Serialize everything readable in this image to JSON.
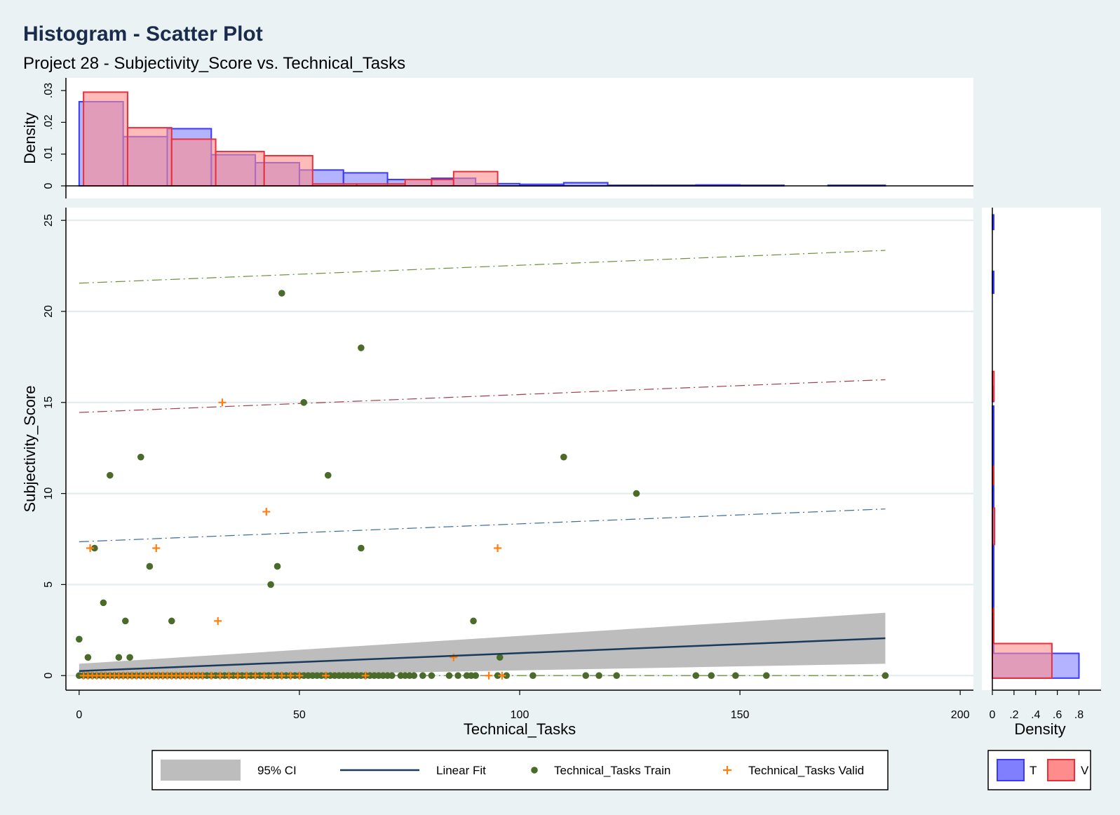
{
  "title": "Histogram - Scatter Plot",
  "subtitle": "Project 28 - Subjectivity_Score vs. Technical_Tasks",
  "colors": {
    "background": "#eaf2f3",
    "plot_bg": "#ffffff",
    "grid": "#e3ecee",
    "hist_T_fill": "#8080ff",
    "hist_T_edge": "#3a3aff",
    "hist_V_fill": "#ff8c8c",
    "hist_V_edge": "#e8303c",
    "train_marker": "#4a6b2a",
    "valid_marker": "#ff7f0e",
    "fit_line": "#1a3a5c",
    "ci_band": "#bdbdbd",
    "upper_line": "#6b8e3a",
    "mid_line": "#a0404a",
    "lower_line": "#3a6a9a"
  },
  "chart_data": [
    {
      "id": "top-histogram",
      "type": "bar",
      "ylabel": "Density",
      "yticks": [
        0,
        0.01,
        0.02,
        0.03
      ],
      "ytick_labels": [
        "0",
        ".01",
        ".02",
        ".03"
      ],
      "ylim": [
        0,
        0.034
      ],
      "xlim": [
        -3,
        203
      ],
      "series": [
        {
          "name": "T",
          "bins": [
            [
              0,
              10,
              0.0265
            ],
            [
              10,
              20,
              0.0155
            ],
            [
              20,
              30,
              0.018
            ],
            [
              30,
              40,
              0.0098
            ],
            [
              40,
              50,
              0.0073
            ],
            [
              50,
              60,
              0.005
            ],
            [
              60,
              70,
              0.0041
            ],
            [
              70,
              80,
              0.002
            ],
            [
              80,
              90,
              0.0024
            ],
            [
              90,
              100,
              0.0007
            ],
            [
              100,
              110,
              0.0005
            ],
            [
              110,
              120,
              0.001
            ],
            [
              120,
              130,
              0.0002
            ],
            [
              130,
              140,
              0.0002
            ],
            [
              140,
              150,
              0.0003
            ],
            [
              150,
              160,
              0.0002
            ],
            [
              170,
              183,
              0.0002
            ]
          ]
        },
        {
          "name": "V",
          "bins": [
            [
              1,
              11,
              0.0295
            ],
            [
              11,
              21,
              0.0183
            ],
            [
              21,
              31,
              0.0147
            ],
            [
              31,
              42,
              0.0108
            ],
            [
              42,
              53,
              0.0095
            ],
            [
              53,
              63,
              0.0006
            ],
            [
              63,
              74,
              0.0006
            ],
            [
              74,
              80,
              0.002
            ],
            [
              80,
              85,
              0.002
            ],
            [
              85,
              95,
              0.0045
            ]
          ]
        }
      ]
    },
    {
      "id": "main-scatter",
      "type": "scatter",
      "xlabel": "Technical_Tasks",
      "ylabel": "Subjectivity_Score",
      "xlim": [
        -3,
        203
      ],
      "ylim": [
        -0.8,
        25.7
      ],
      "xticks": [
        0,
        50,
        100,
        150,
        200
      ],
      "yticks": [
        0,
        5,
        10,
        15,
        20,
        25
      ],
      "grid": true,
      "series": [
        {
          "name": "Technical_Tasks Train",
          "marker": "circle",
          "points": [
            [
              46,
              21
            ],
            [
              64,
              18
            ],
            [
              51,
              15
            ],
            [
              14,
              12
            ],
            [
              110,
              12
            ],
            [
              7,
              11
            ],
            [
              56.5,
              11
            ],
            [
              126.5,
              10
            ],
            [
              3.5,
              7
            ],
            [
              64,
              7
            ],
            [
              16,
              6
            ],
            [
              45,
              6
            ],
            [
              43.5,
              5
            ],
            [
              5.5,
              4
            ],
            [
              10.5,
              3
            ],
            [
              21,
              3
            ],
            [
              89.5,
              3
            ],
            [
              0,
              2
            ],
            [
              2,
              1
            ],
            [
              9,
              1
            ],
            [
              11.5,
              1
            ],
            [
              95.5,
              1
            ],
            [
              0,
              0
            ],
            [
              1,
              0
            ],
            [
              2,
              0
            ],
            [
              3,
              0
            ],
            [
              4,
              0
            ],
            [
              5,
              0
            ],
            [
              6,
              0
            ],
            [
              7,
              0
            ],
            [
              8,
              0
            ],
            [
              9,
              0
            ],
            [
              10,
              0
            ],
            [
              11,
              0
            ],
            [
              12,
              0
            ],
            [
              13,
              0
            ],
            [
              14,
              0
            ],
            [
              15,
              0
            ],
            [
              16,
              0
            ],
            [
              17,
              0
            ],
            [
              18,
              0
            ],
            [
              19,
              0
            ],
            [
              20,
              0
            ],
            [
              21,
              0
            ],
            [
              22,
              0
            ],
            [
              23,
              0
            ],
            [
              24,
              0
            ],
            [
              25,
              0
            ],
            [
              26,
              0
            ],
            [
              27,
              0
            ],
            [
              28,
              0
            ],
            [
              29,
              0
            ],
            [
              30,
              0
            ],
            [
              31,
              0
            ],
            [
              32,
              0
            ],
            [
              33,
              0
            ],
            [
              34,
              0
            ],
            [
              35,
              0
            ],
            [
              36,
              0
            ],
            [
              37,
              0
            ],
            [
              38,
              0
            ],
            [
              39,
              0
            ],
            [
              40,
              0
            ],
            [
              41,
              0
            ],
            [
              42,
              0
            ],
            [
              43,
              0
            ],
            [
              44,
              0
            ],
            [
              45,
              0
            ],
            [
              46,
              0
            ],
            [
              47,
              0
            ],
            [
              48,
              0
            ],
            [
              49,
              0
            ],
            [
              50,
              0
            ],
            [
              51,
              0
            ],
            [
              52,
              0
            ],
            [
              53,
              0
            ],
            [
              54,
              0
            ],
            [
              55,
              0
            ],
            [
              56,
              0
            ],
            [
              57,
              0
            ],
            [
              58,
              0
            ],
            [
              59,
              0
            ],
            [
              60,
              0
            ],
            [
              61,
              0
            ],
            [
              62,
              0
            ],
            [
              63,
              0
            ],
            [
              64,
              0
            ],
            [
              65,
              0
            ],
            [
              66,
              0
            ],
            [
              67,
              0
            ],
            [
              68,
              0
            ],
            [
              69,
              0
            ],
            [
              70,
              0
            ],
            [
              71,
              0
            ],
            [
              73,
              0
            ],
            [
              74,
              0
            ],
            [
              75,
              0
            ],
            [
              76,
              0
            ],
            [
              78,
              0
            ],
            [
              80,
              0
            ],
            [
              84,
              0
            ],
            [
              86,
              0
            ],
            [
              88,
              0
            ],
            [
              89,
              0
            ],
            [
              90,
              0
            ],
            [
              95,
              0
            ],
            [
              97,
              0
            ],
            [
              103,
              0
            ],
            [
              115,
              0
            ],
            [
              118,
              0
            ],
            [
              122,
              0
            ],
            [
              140,
              0
            ],
            [
              143.5,
              0
            ],
            [
              149,
              0
            ],
            [
              156,
              0
            ],
            [
              183,
              0
            ]
          ]
        },
        {
          "name": "Technical_Tasks Valid",
          "marker": "plus",
          "points": [
            [
              32.5,
              15
            ],
            [
              42.5,
              9
            ],
            [
              2.5,
              7
            ],
            [
              17.5,
              7
            ],
            [
              95,
              7
            ],
            [
              31.5,
              3
            ],
            [
              85,
              1
            ],
            [
              1,
              0
            ],
            [
              2,
              0
            ],
            [
              3,
              0
            ],
            [
              4,
              0
            ],
            [
              5,
              0
            ],
            [
              6,
              0
            ],
            [
              7,
              0
            ],
            [
              8,
              0
            ],
            [
              9,
              0
            ],
            [
              10,
              0
            ],
            [
              11,
              0
            ],
            [
              12,
              0
            ],
            [
              13,
              0
            ],
            [
              14,
              0
            ],
            [
              15,
              0
            ],
            [
              16,
              0
            ],
            [
              17,
              0
            ],
            [
              18,
              0
            ],
            [
              19,
              0
            ],
            [
              20,
              0
            ],
            [
              21,
              0
            ],
            [
              22,
              0
            ],
            [
              23,
              0
            ],
            [
              24,
              0
            ],
            [
              25,
              0
            ],
            [
              26,
              0
            ],
            [
              27,
              0
            ],
            [
              28,
              0
            ],
            [
              30,
              0
            ],
            [
              32,
              0
            ],
            [
              34,
              0
            ],
            [
              36,
              0
            ],
            [
              38,
              0
            ],
            [
              40,
              0
            ],
            [
              42,
              0
            ],
            [
              44,
              0
            ],
            [
              46,
              0
            ],
            [
              48,
              0
            ],
            [
              50,
              0
            ],
            [
              56,
              0
            ],
            [
              65,
              0
            ],
            [
              93,
              0
            ],
            [
              96,
              0
            ]
          ]
        }
      ],
      "fit": {
        "name": "Linear Fit",
        "x": [
          0,
          183
        ],
        "y": [
          0.25,
          2.05
        ],
        "ci_name": "95% CI",
        "ci_upper": [
          0.65,
          3.45
        ],
        "ci_lower": [
          -0.15,
          0.65
        ]
      },
      "ref_lines": [
        {
          "name": "upper",
          "x": [
            0,
            183
          ],
          "y": [
            21.55,
            23.35
          ]
        },
        {
          "name": "mid",
          "x": [
            0,
            183
          ],
          "y": [
            14.45,
            16.25
          ]
        },
        {
          "name": "lower",
          "x": [
            0,
            183
          ],
          "y": [
            7.35,
            9.15
          ]
        },
        {
          "name": "base",
          "x": [
            0,
            183
          ],
          "y": [
            0,
            0
          ]
        }
      ]
    },
    {
      "id": "right-histogram",
      "type": "bar",
      "orientation": "horizontal",
      "xlabel": "Density",
      "xticks": [
        0,
        0.2,
        0.4,
        0.6,
        0.8
      ],
      "xtick_labels": [
        "0",
        ".2",
        ".4",
        ".6",
        ".8"
      ],
      "xlim": [
        0,
        0.92
      ],
      "series": [
        {
          "name": "T",
          "bins": [
            [
              -0.14,
              1.22,
              0.8
            ],
            [
              1.25,
              3.4,
              0.008
            ],
            [
              3.45,
              5.4,
              0.008
            ],
            [
              5.45,
              7.6,
              0.008
            ],
            [
              7.65,
              9.7,
              0.008
            ],
            [
              9.75,
              11.8,
              0.008
            ],
            [
              11.85,
              14.8,
              0.008
            ],
            [
              15.05,
              15.9,
              0.008
            ],
            [
              21.0,
              22.2,
              0.008
            ],
            [
              24.5,
              25.3,
              0.008
            ]
          ]
        },
        {
          "name": "V",
          "bins": [
            [
              -0.14,
              1.76,
              0.55
            ],
            [
              1.85,
              3.7,
              0.008
            ],
            [
              7.2,
              9.2,
              0.02
            ],
            [
              10.5,
              11.5,
              0.008
            ],
            [
              15.1,
              16.7,
              0.015
            ]
          ]
        }
      ]
    }
  ],
  "legend_main": {
    "items": [
      {
        "label": "95% CI"
      },
      {
        "label": "Linear Fit"
      },
      {
        "label": "Technical_Tasks Train"
      },
      {
        "label": "Technical_Tasks Valid"
      }
    ]
  },
  "legend_side": {
    "items": [
      {
        "label": "T"
      },
      {
        "label": "V"
      }
    ]
  }
}
